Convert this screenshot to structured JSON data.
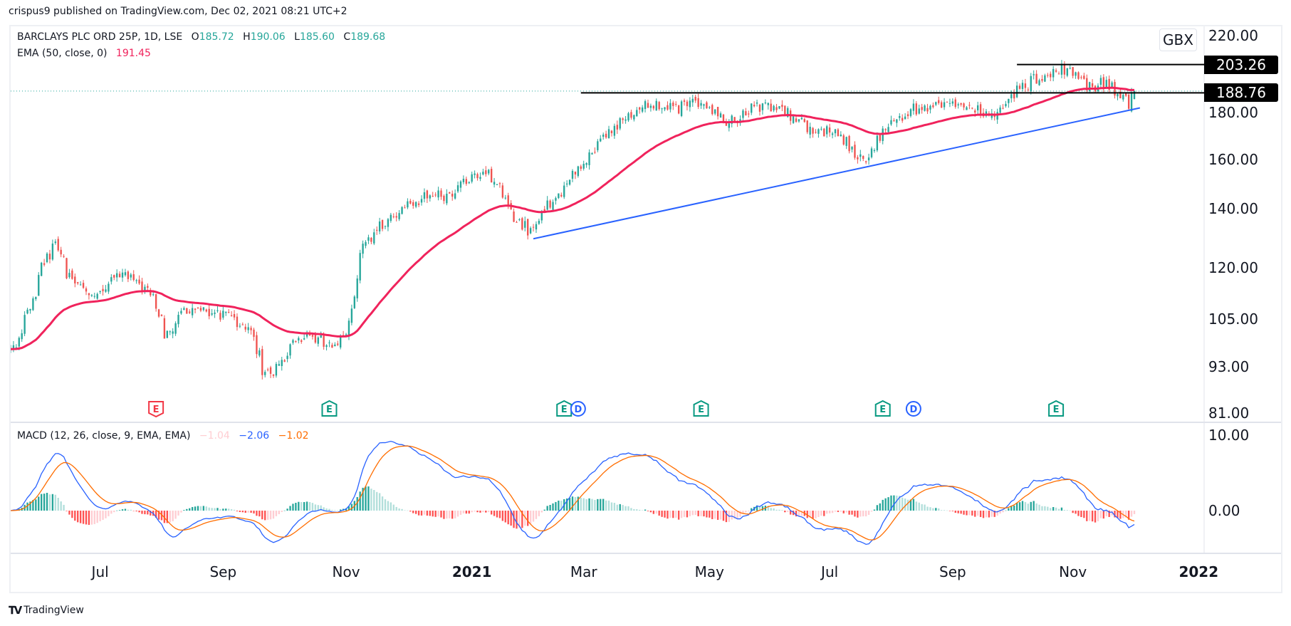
{
  "header": {
    "publish_text": "crispus9 published on TradingView.com, Dec 02, 2021 08:21 UTC+2"
  },
  "legend": {
    "symbol": "BARCLAYS PLC ORD 25P, 1D, LSE",
    "o_label": "O",
    "o": "185.72",
    "h_label": "H",
    "h": "190.06",
    "l_label": "L",
    "l": "185.60",
    "c_label": "C",
    "c": "189.68",
    "ema_label": "EMA (50, close, 0)",
    "ema_value": "191.45",
    "macd_label": "MACD (12, 26, close, 9, EMA, EMA)",
    "macd_hist": "−1.04",
    "macd_line": "−2.06",
    "macd_signal": "−1.02"
  },
  "colors": {
    "up": "#26a69a",
    "down": "#ef5350",
    "ema": "#f0235c",
    "macd": "#2962ff",
    "signal": "#ff6d00",
    "trendline": "#2962ff",
    "hist_up_strong": "#26a69a",
    "hist_up_weak": "#b2dfdb",
    "hist_down_strong": "#ff5252",
    "hist_down_weak": "#ffcdd2",
    "earnings_green": "#089981",
    "earnings_red": "#f23645",
    "dividend": "#2962ff"
  },
  "price_axis": {
    "currency": "GBX",
    "labels": [
      "220.00",
      "180.00",
      "160.00",
      "140.00",
      "120.00",
      "105.00",
      "93.00",
      "81.00"
    ],
    "tags": [
      "203.26",
      "188.76"
    ],
    "scale": "log"
  },
  "macd_axis": {
    "labels": [
      "10.00",
      "0.00"
    ]
  },
  "time_axis": [
    {
      "label": "Jul",
      "date": "2020-07-01",
      "year": false
    },
    {
      "label": "Sep",
      "date": "2020-09-01",
      "year": false
    },
    {
      "label": "Nov",
      "date": "2020-11-02",
      "year": false
    },
    {
      "label": "2021",
      "date": "2021-01-04",
      "year": true
    },
    {
      "label": "Mar",
      "date": "2021-03-01",
      "year": false
    },
    {
      "label": "May",
      "date": "2021-05-03",
      "year": false
    },
    {
      "label": "Jul",
      "date": "2021-07-01",
      "year": false
    },
    {
      "label": "Sep",
      "date": "2021-09-01",
      "year": false
    },
    {
      "label": "Nov",
      "date": "2021-11-01",
      "year": false
    },
    {
      "label": "2022",
      "date": "2022-01-03",
      "year": true
    }
  ],
  "events": [
    {
      "type": "E",
      "date": "2020-07-29",
      "kind": "red"
    },
    {
      "type": "E",
      "date": "2020-10-23",
      "kind": "green"
    },
    {
      "type": "E",
      "date": "2021-02-18",
      "kind": "green"
    },
    {
      "type": "D",
      "date": "2021-02-25",
      "kind": "dividend"
    },
    {
      "type": "E",
      "date": "2021-04-28",
      "kind": "green"
    },
    {
      "type": "E",
      "date": "2021-07-28",
      "kind": "green"
    },
    {
      "type": "D",
      "date": "2021-08-12",
      "kind": "dividend"
    },
    {
      "type": "E",
      "date": "2021-10-22",
      "kind": "green"
    }
  ],
  "footer": {
    "brand": "TradingView",
    "logo": "TV"
  },
  "chart_data": {
    "type": "candlestick",
    "title": "BARCLAYS PLC ORD 25P, 1D, LSE",
    "scale": "log",
    "ylim": [
      81,
      220
    ],
    "grid": false,
    "last_candle": {
      "date": "2021-12-01",
      "open": 185.72,
      "high": 190.06,
      "low": 185.6,
      "close": 189.68
    },
    "weekly_close": [
      {
        "date": "2020-05-18",
        "close": 96
      },
      {
        "date": "2020-05-25",
        "close": 105
      },
      {
        "date": "2020-06-01",
        "close": 118
      },
      {
        "date": "2020-06-08",
        "close": 128
      },
      {
        "date": "2020-06-15",
        "close": 117
      },
      {
        "date": "2020-06-22",
        "close": 113
      },
      {
        "date": "2020-06-29",
        "close": 112
      },
      {
        "date": "2020-07-06",
        "close": 116
      },
      {
        "date": "2020-07-13",
        "close": 117
      },
      {
        "date": "2020-07-20",
        "close": 115
      },
      {
        "date": "2020-07-27",
        "close": 112
      },
      {
        "date": "2020-08-03",
        "close": 100
      },
      {
        "date": "2020-08-10",
        "close": 106
      },
      {
        "date": "2020-08-17",
        "close": 108
      },
      {
        "date": "2020-08-24",
        "close": 107
      },
      {
        "date": "2020-08-31",
        "close": 106
      },
      {
        "date": "2020-09-07",
        "close": 104
      },
      {
        "date": "2020-09-14",
        "close": 102
      },
      {
        "date": "2020-09-21",
        "close": 90
      },
      {
        "date": "2020-09-28",
        "close": 92
      },
      {
        "date": "2020-10-05",
        "close": 98
      },
      {
        "date": "2020-10-12",
        "close": 100
      },
      {
        "date": "2020-10-19",
        "close": 99
      },
      {
        "date": "2020-10-26",
        "close": 98
      },
      {
        "date": "2020-11-02",
        "close": 102
      },
      {
        "date": "2020-11-09",
        "close": 125
      },
      {
        "date": "2020-11-16",
        "close": 132
      },
      {
        "date": "2020-11-23",
        "close": 136
      },
      {
        "date": "2020-11-30",
        "close": 140
      },
      {
        "date": "2020-12-07",
        "close": 142
      },
      {
        "date": "2020-12-14",
        "close": 146
      },
      {
        "date": "2020-12-21",
        "close": 144
      },
      {
        "date": "2020-12-28",
        "close": 148
      },
      {
        "date": "2021-01-04",
        "close": 152
      },
      {
        "date": "2021-01-11",
        "close": 153
      },
      {
        "date": "2021-01-18",
        "close": 147
      },
      {
        "date": "2021-01-25",
        "close": 136
      },
      {
        "date": "2021-02-01",
        "close": 131
      },
      {
        "date": "2021-02-08",
        "close": 140
      },
      {
        "date": "2021-02-15",
        "close": 143
      },
      {
        "date": "2021-02-22",
        "close": 152
      },
      {
        "date": "2021-03-01",
        "close": 157
      },
      {
        "date": "2021-03-08",
        "close": 168
      },
      {
        "date": "2021-03-15",
        "close": 172
      },
      {
        "date": "2021-03-22",
        "close": 178
      },
      {
        "date": "2021-03-29",
        "close": 182
      },
      {
        "date": "2021-04-05",
        "close": 184
      },
      {
        "date": "2021-04-12",
        "close": 181
      },
      {
        "date": "2021-04-19",
        "close": 182
      },
      {
        "date": "2021-04-26",
        "close": 184
      },
      {
        "date": "2021-05-03",
        "close": 181
      },
      {
        "date": "2021-05-10",
        "close": 175
      },
      {
        "date": "2021-05-17",
        "close": 177
      },
      {
        "date": "2021-05-24",
        "close": 181
      },
      {
        "date": "2021-05-31",
        "close": 183
      },
      {
        "date": "2021-06-07",
        "close": 181
      },
      {
        "date": "2021-06-14",
        "close": 176
      },
      {
        "date": "2021-06-21",
        "close": 172
      },
      {
        "date": "2021-06-28",
        "close": 171
      },
      {
        "date": "2021-07-05",
        "close": 170
      },
      {
        "date": "2021-07-12",
        "close": 163
      },
      {
        "date": "2021-07-19",
        "close": 158
      },
      {
        "date": "2021-07-26",
        "close": 168
      },
      {
        "date": "2021-08-02",
        "close": 174
      },
      {
        "date": "2021-08-09",
        "close": 180
      },
      {
        "date": "2021-08-16",
        "close": 182
      },
      {
        "date": "2021-08-23",
        "close": 183
      },
      {
        "date": "2021-08-30",
        "close": 184
      },
      {
        "date": "2021-09-06",
        "close": 182
      },
      {
        "date": "2021-09-13",
        "close": 181
      },
      {
        "date": "2021-09-20",
        "close": 176
      },
      {
        "date": "2021-09-27",
        "close": 183
      },
      {
        "date": "2021-10-04",
        "close": 190
      },
      {
        "date": "2021-10-11",
        "close": 195
      },
      {
        "date": "2021-10-18",
        "close": 197
      },
      {
        "date": "2021-10-25",
        "close": 201
      },
      {
        "date": "2021-11-01",
        "close": 199
      },
      {
        "date": "2021-11-08",
        "close": 191
      },
      {
        "date": "2021-11-15",
        "close": 194
      },
      {
        "date": "2021-11-22",
        "close": 189
      },
      {
        "date": "2021-11-29",
        "close": 183
      },
      {
        "date": "2021-12-01",
        "close": 189.68
      }
    ],
    "indicators": [
      {
        "name": "EMA (50, close, 0)",
        "value": 191.45
      },
      {
        "name": "MACD (12, 26, close, 9, EMA, EMA)",
        "histogram": -1.04,
        "macd": -2.06,
        "signal": -1.02
      }
    ],
    "drawings": [
      {
        "type": "horizontal_ray",
        "price": 203.26,
        "start": "2021-10-04"
      },
      {
        "type": "horizontal_ray",
        "price": 188.76,
        "start": "2021-02-26"
      },
      {
        "type": "trendline",
        "from": {
          "date": "2021-02-03",
          "price": 129
        },
        "to": {
          "date": "2021-12-03",
          "price": 181.5
        }
      }
    ]
  }
}
